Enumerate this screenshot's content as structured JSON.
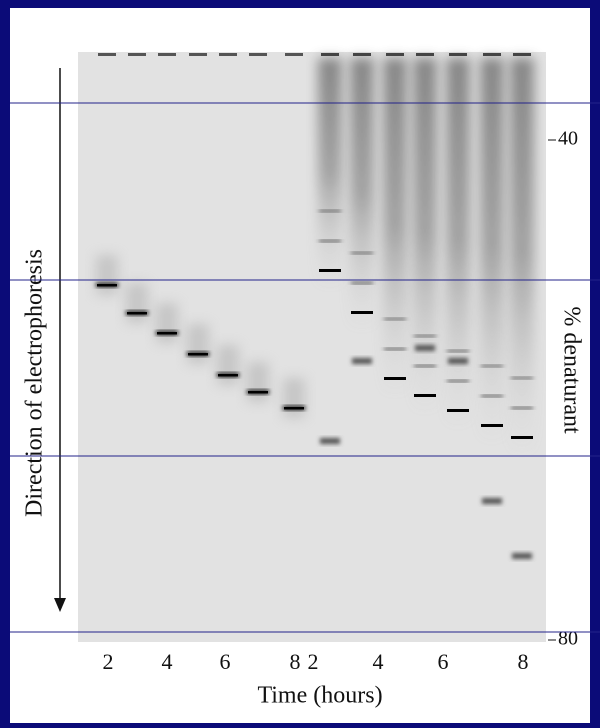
{
  "figure": {
    "arrow_label": "Direction of electrophoresis",
    "y_axis_label": "% denaturant",
    "y_ticks": [
      "40",
      "80"
    ],
    "x_labels": [
      "2",
      "4",
      "6",
      "8",
      "2",
      "4",
      "6",
      "8"
    ],
    "x_axis_label": "Time (hours)"
  }
}
